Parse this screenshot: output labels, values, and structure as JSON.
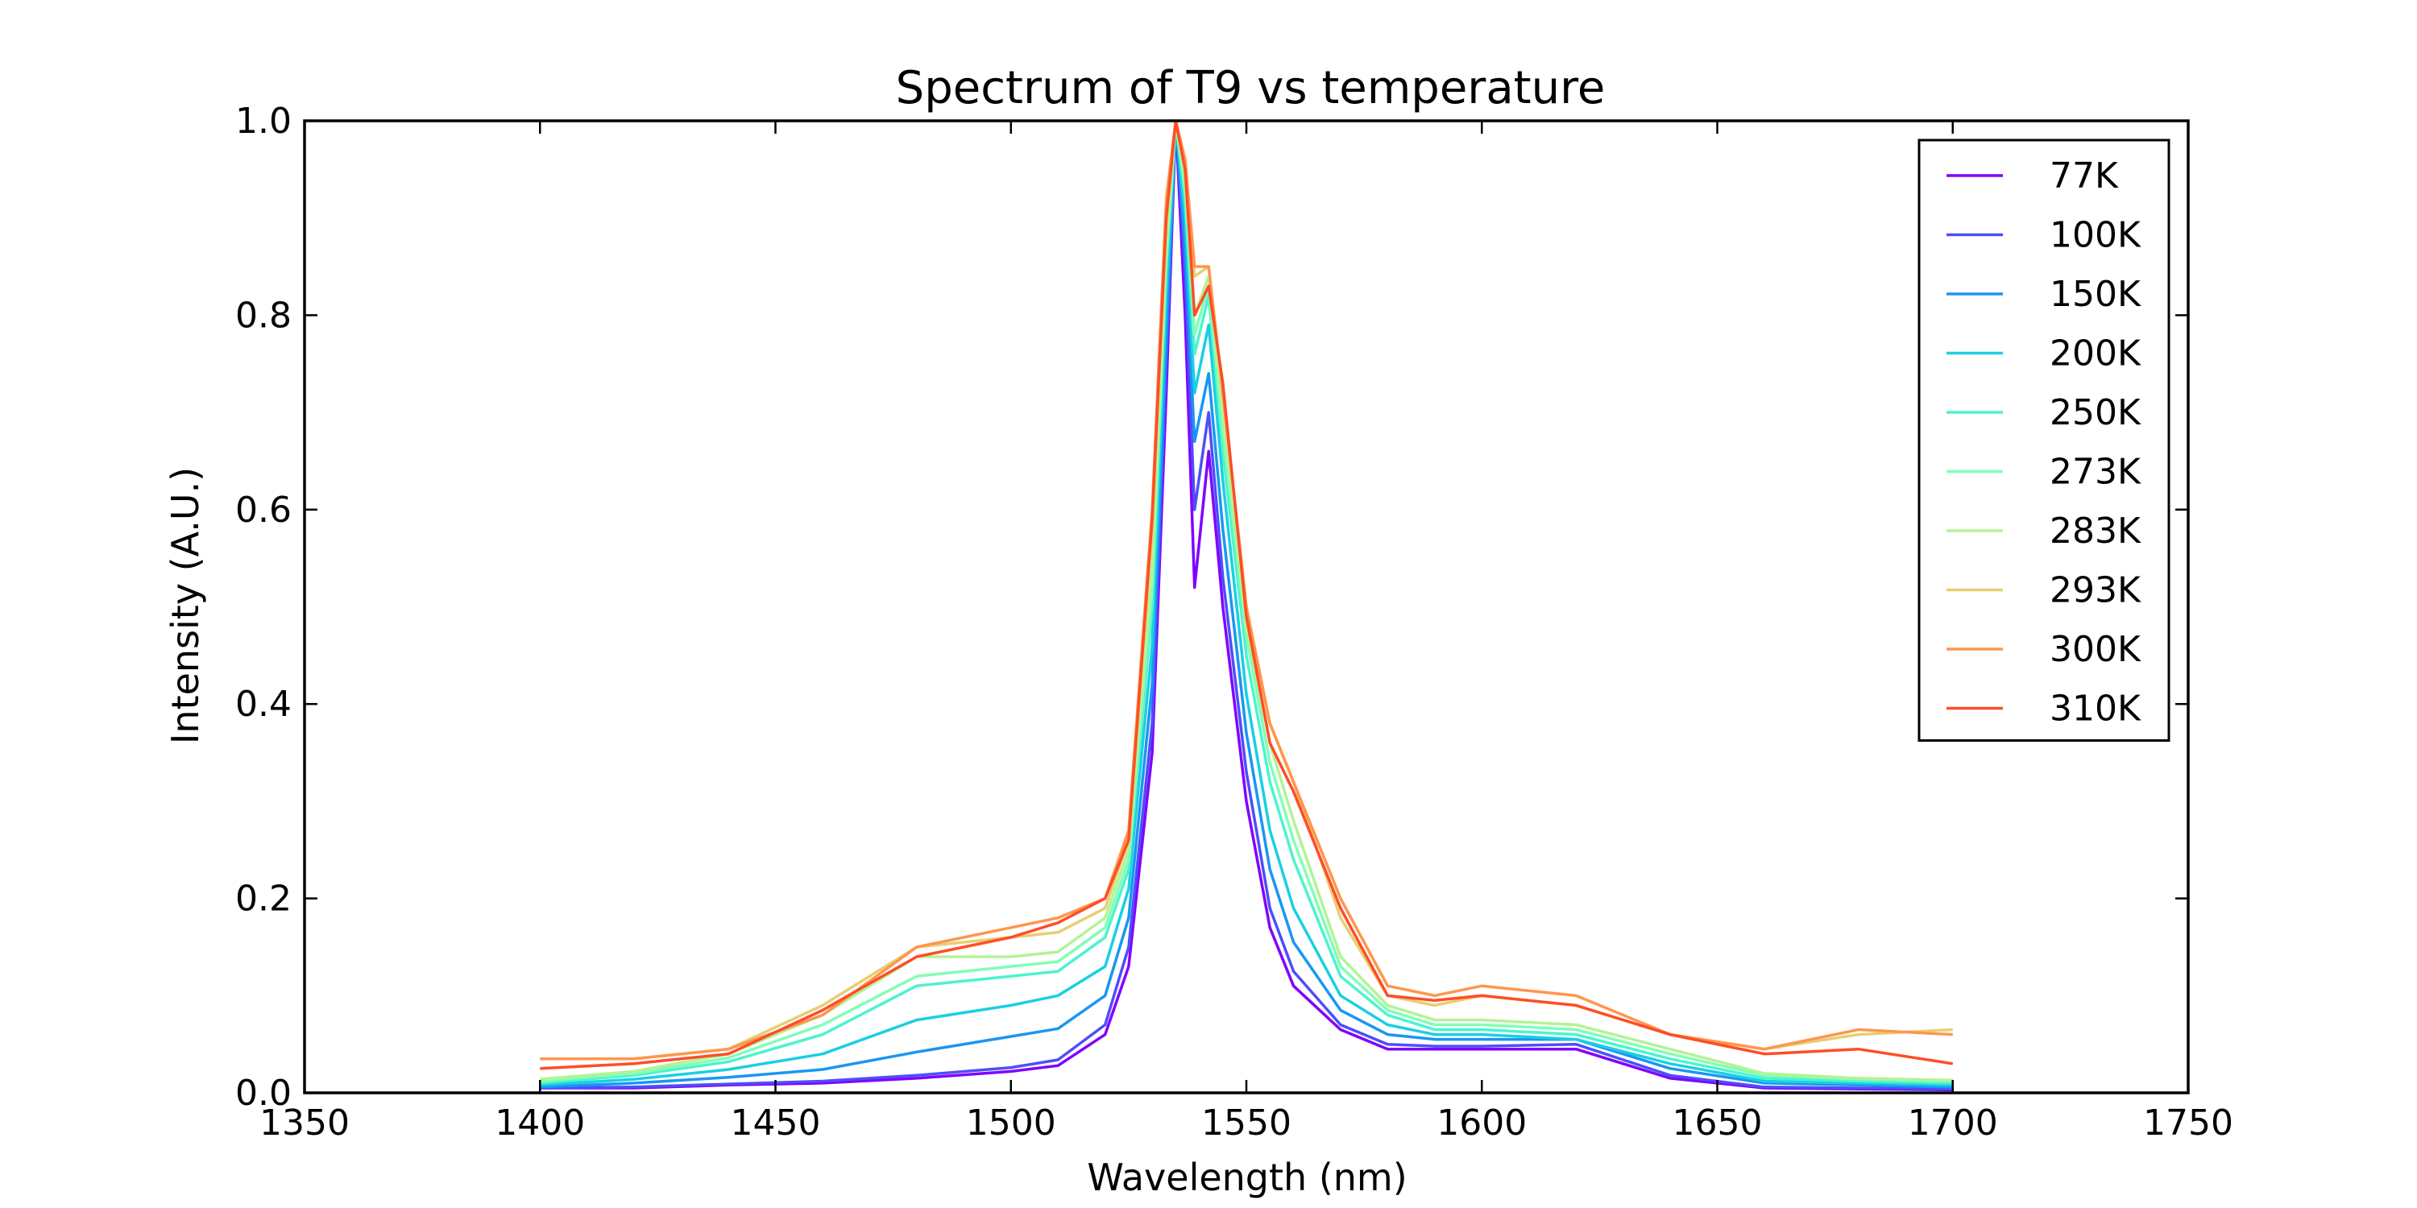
{
  "chart_data": {
    "type": "line",
    "title": "Spectrum of T9 vs temperature",
    "xlabel": "Wavelength (nm)",
    "ylabel": "Intensity (A.U.)",
    "xlim": [
      1350,
      1750
    ],
    "ylim": [
      0.0,
      1.0
    ],
    "xticks": [
      1350,
      1400,
      1450,
      1500,
      1550,
      1600,
      1650,
      1700,
      1750
    ],
    "xtick_labels": [
      "1350",
      "1400",
      "1450",
      "1500",
      "1550",
      "1600",
      "1650",
      "1700",
      "1750"
    ],
    "yticks": [
      0.0,
      0.2,
      0.4,
      0.6,
      0.8,
      1.0
    ],
    "ytick_labels": [
      "0.0",
      "0.2",
      "0.4",
      "0.6",
      "0.8",
      "1.0"
    ],
    "grid": false,
    "legend_position": "top-right",
    "x": [
      1400,
      1420,
      1440,
      1460,
      1480,
      1500,
      1510,
      1520,
      1525,
      1530,
      1533,
      1535,
      1537,
      1539,
      1542,
      1545,
      1550,
      1555,
      1560,
      1570,
      1580,
      1590,
      1600,
      1620,
      1640,
      1660,
      1680,
      1700
    ],
    "series": [
      {
        "name": "77K",
        "color": "#8000ff",
        "values": [
          0.005,
          0.005,
          0.008,
          0.01,
          0.015,
          0.022,
          0.028,
          0.06,
          0.13,
          0.35,
          0.72,
          1.0,
          0.8,
          0.52,
          0.66,
          0.5,
          0.3,
          0.17,
          0.11,
          0.065,
          0.045,
          0.045,
          0.045,
          0.045,
          0.015,
          0.005,
          0.004,
          0.003
        ]
      },
      {
        "name": "100K",
        "color": "#4d4dfc",
        "values": [
          0.005,
          0.006,
          0.009,
          0.012,
          0.018,
          0.026,
          0.034,
          0.07,
          0.15,
          0.38,
          0.75,
          1.0,
          0.84,
          0.6,
          0.7,
          0.53,
          0.33,
          0.19,
          0.125,
          0.07,
          0.05,
          0.048,
          0.048,
          0.05,
          0.018,
          0.006,
          0.005,
          0.004
        ]
      },
      {
        "name": "150K",
        "color": "#1996f3",
        "values": [
          0.006,
          0.01,
          0.016,
          0.024,
          0.042,
          0.058,
          0.066,
          0.1,
          0.18,
          0.42,
          0.78,
          1.0,
          0.87,
          0.67,
          0.74,
          0.58,
          0.37,
          0.23,
          0.155,
          0.085,
          0.06,
          0.055,
          0.055,
          0.055,
          0.025,
          0.01,
          0.008,
          0.006
        ]
      },
      {
        "name": "200K",
        "color": "#1acfe3",
        "values": [
          0.008,
          0.014,
          0.024,
          0.04,
          0.075,
          0.09,
          0.1,
          0.13,
          0.21,
          0.46,
          0.82,
          1.0,
          0.9,
          0.72,
          0.79,
          0.63,
          0.41,
          0.27,
          0.19,
          0.1,
          0.07,
          0.06,
          0.06,
          0.055,
          0.03,
          0.012,
          0.01,
          0.008
        ]
      },
      {
        "name": "250K",
        "color": "#4df3ce",
        "values": [
          0.01,
          0.018,
          0.032,
          0.06,
          0.11,
          0.12,
          0.125,
          0.16,
          0.23,
          0.5,
          0.85,
          1.0,
          0.92,
          0.76,
          0.82,
          0.66,
          0.45,
          0.32,
          0.24,
          0.12,
          0.08,
          0.065,
          0.065,
          0.06,
          0.035,
          0.015,
          0.012,
          0.01
        ]
      },
      {
        "name": "273K",
        "color": "#80ffb4",
        "values": [
          0.012,
          0.02,
          0.036,
          0.07,
          0.12,
          0.13,
          0.135,
          0.17,
          0.24,
          0.52,
          0.86,
          1.0,
          0.93,
          0.78,
          0.83,
          0.68,
          0.47,
          0.34,
          0.26,
          0.13,
          0.085,
          0.07,
          0.07,
          0.065,
          0.04,
          0.018,
          0.014,
          0.012
        ]
      },
      {
        "name": "283K",
        "color": "#b3f396",
        "values": [
          0.014,
          0.022,
          0.04,
          0.08,
          0.14,
          0.14,
          0.145,
          0.18,
          0.25,
          0.54,
          0.87,
          1.0,
          0.94,
          0.8,
          0.84,
          0.7,
          0.48,
          0.36,
          0.28,
          0.14,
          0.09,
          0.075,
          0.075,
          0.07,
          0.045,
          0.02,
          0.015,
          0.013
        ]
      },
      {
        "name": "293K",
        "color": "#e6cf73",
        "values": [
          0.035,
          0.035,
          0.045,
          0.09,
          0.15,
          0.16,
          0.165,
          0.19,
          0.26,
          0.58,
          0.9,
          1.0,
          0.96,
          0.84,
          0.85,
          0.72,
          0.5,
          0.38,
          0.32,
          0.18,
          0.1,
          0.09,
          0.1,
          0.09,
          0.06,
          0.045,
          0.06,
          0.065
        ]
      },
      {
        "name": "300K",
        "color": "#ff964d",
        "values": [
          0.035,
          0.035,
          0.045,
          0.08,
          0.15,
          0.17,
          0.18,
          0.2,
          0.27,
          0.6,
          0.92,
          1.0,
          0.96,
          0.85,
          0.85,
          0.72,
          0.5,
          0.38,
          0.32,
          0.2,
          0.11,
          0.1,
          0.11,
          0.1,
          0.06,
          0.045,
          0.065,
          0.06
        ]
      },
      {
        "name": "310K",
        "color": "#ff4d27",
        "values": [
          0.025,
          0.03,
          0.04,
          0.085,
          0.14,
          0.16,
          0.175,
          0.2,
          0.26,
          0.59,
          0.9,
          1.0,
          0.95,
          0.8,
          0.83,
          0.73,
          0.49,
          0.36,
          0.31,
          0.19,
          0.1,
          0.095,
          0.1,
          0.09,
          0.06,
          0.04,
          0.045,
          0.03
        ]
      }
    ]
  }
}
